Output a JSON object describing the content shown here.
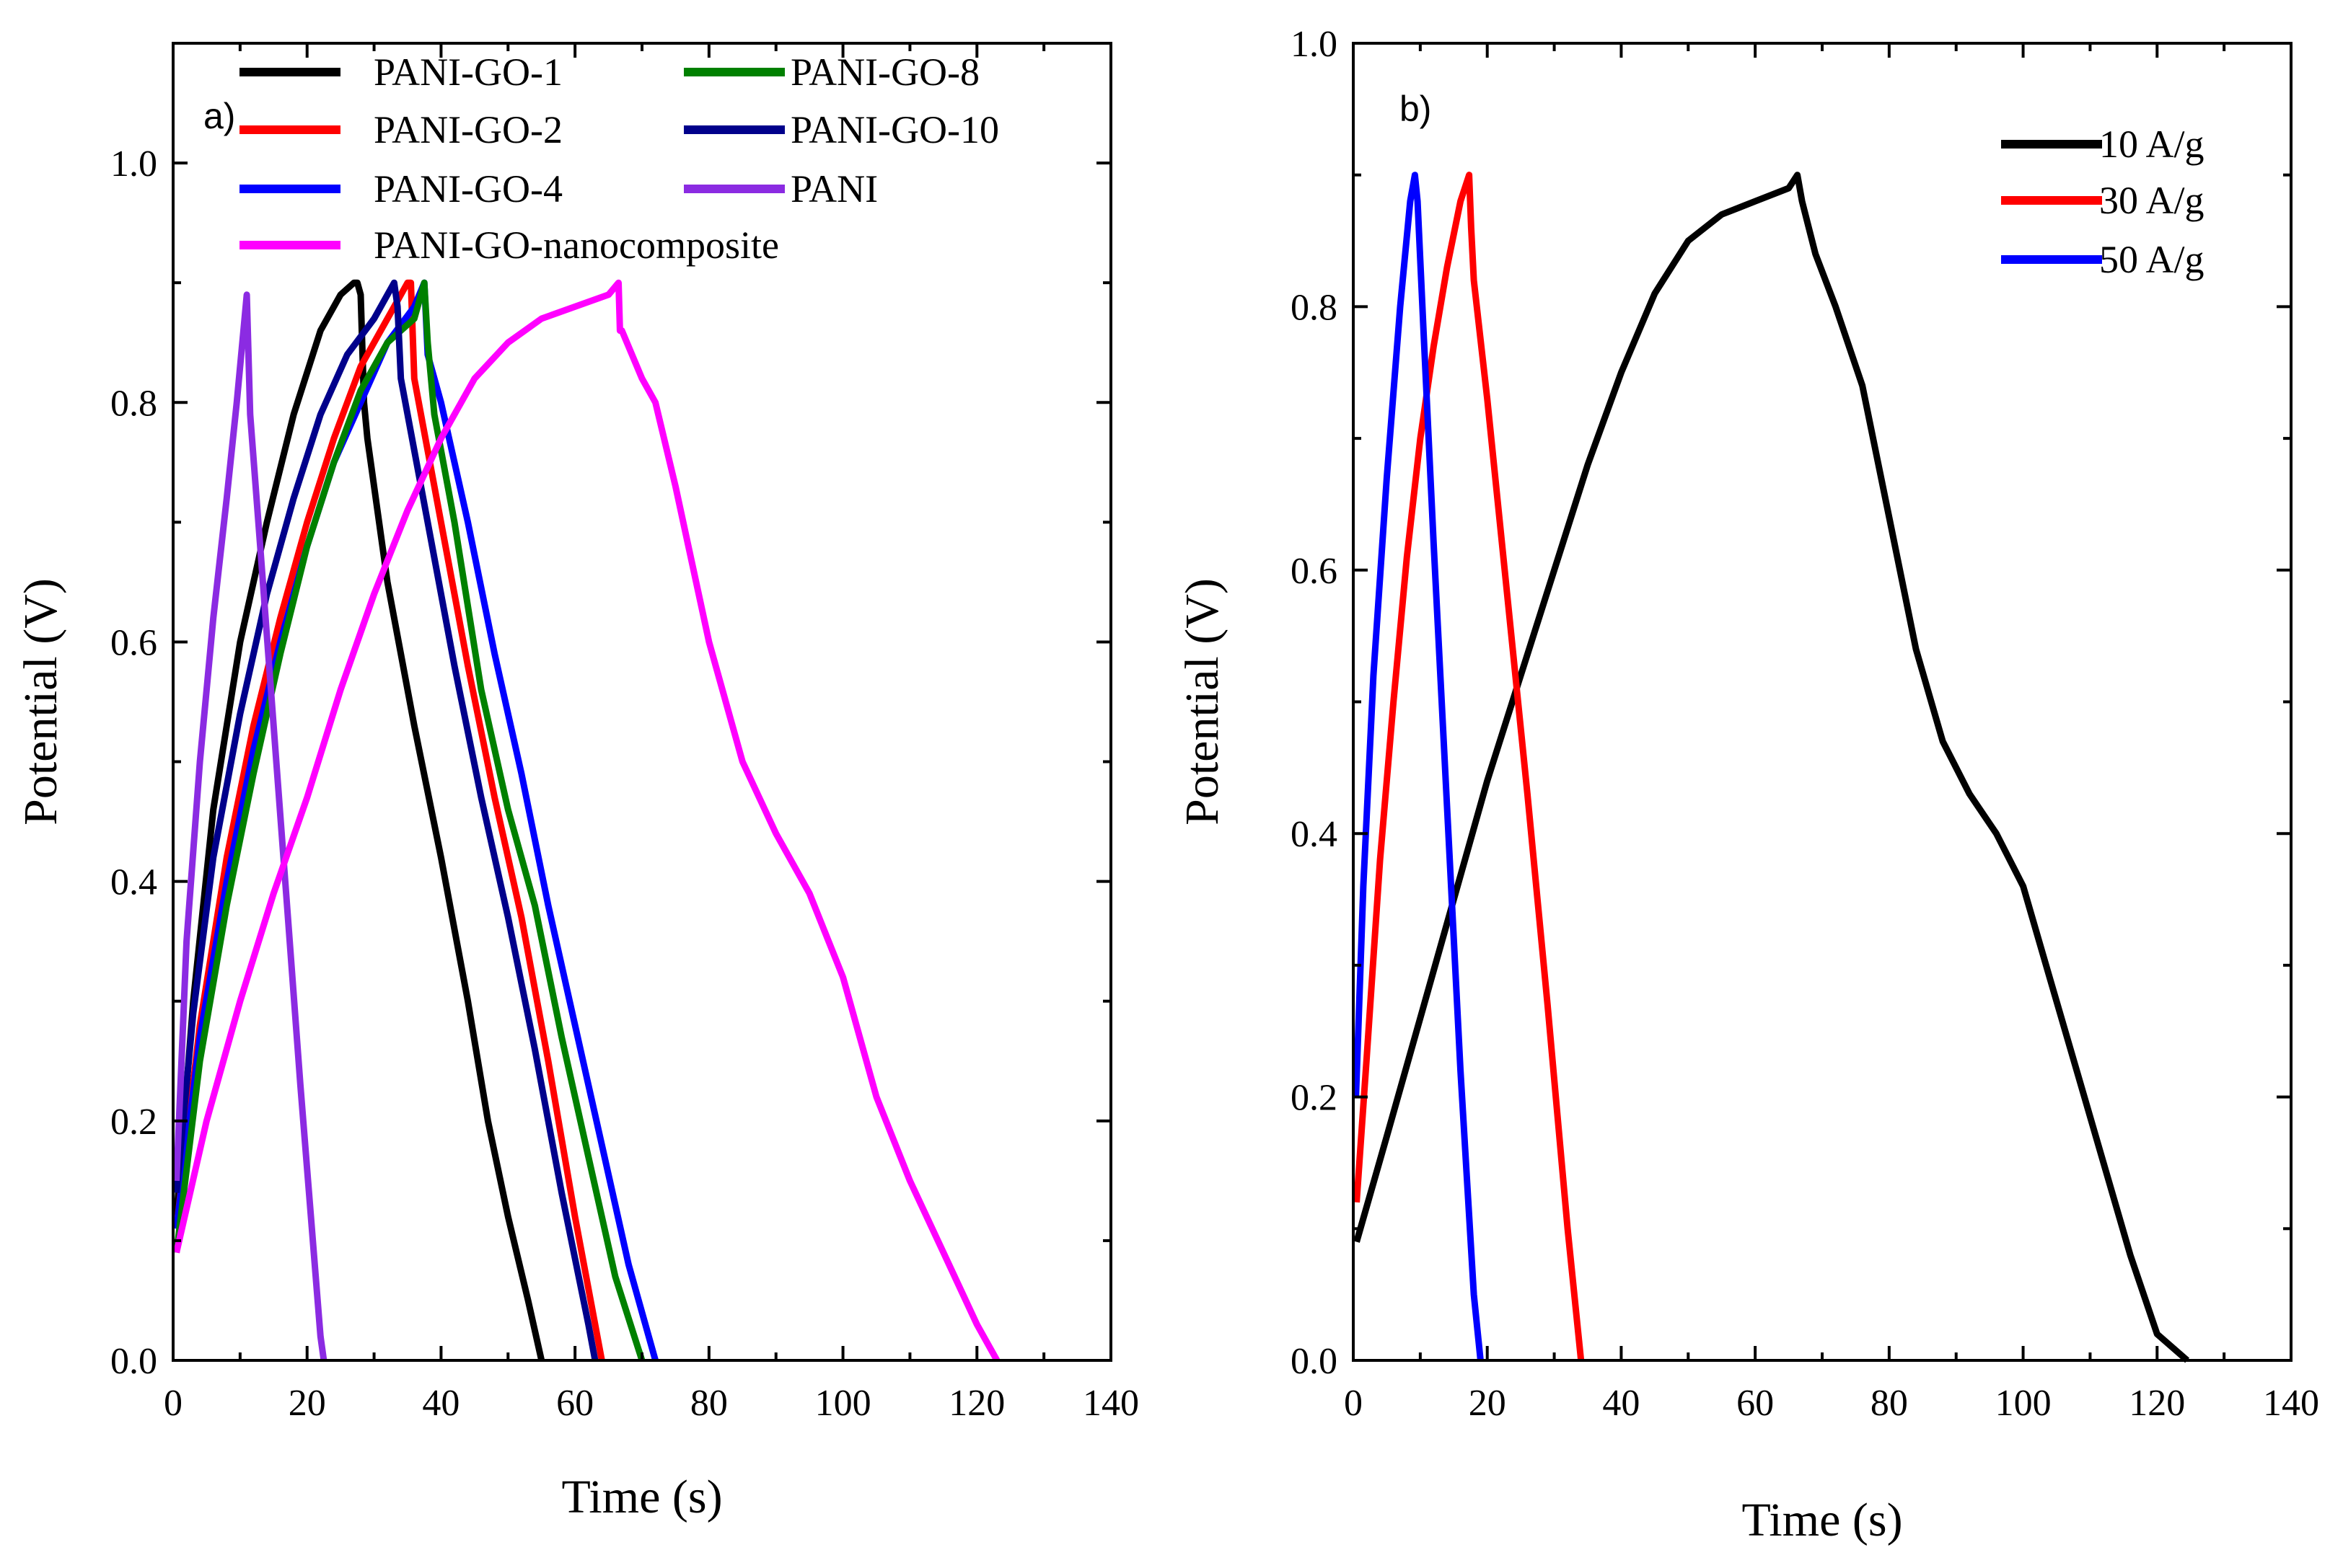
{
  "chart_data": [
    {
      "type": "line",
      "panel_label": "a)",
      "xlabel": "Time (s)",
      "ylabel": "Potential (V)",
      "xlim": [
        0,
        140
      ],
      "ylim": [
        0,
        1.1
      ],
      "xticks": [
        0,
        20,
        40,
        60,
        80,
        100,
        120,
        140
      ],
      "yticks": [
        0.0,
        0.2,
        0.4,
        0.6,
        0.8,
        1.0
      ],
      "xtick_labels": [
        "0",
        "20",
        "40",
        "60",
        "80",
        "100",
        "120",
        "140"
      ],
      "ytick_labels": [
        "0.0",
        "0.2",
        "0.4",
        "0.6",
        "0.8",
        "1.0"
      ],
      "legend_position": "top-left",
      "series": [
        {
          "name": "PANI-GO-1",
          "color": "#000000",
          "x": [
            0.5,
            3,
            6,
            10,
            14,
            18,
            22,
            25,
            27,
            27.5,
            28,
            28.5,
            29,
            32,
            36,
            40,
            44,
            47,
            50,
            53,
            55
          ],
          "y": [
            0.12,
            0.3,
            0.46,
            0.6,
            0.7,
            0.79,
            0.86,
            0.89,
            0.9,
            0.9,
            0.89,
            0.8,
            0.77,
            0.65,
            0.53,
            0.42,
            0.3,
            0.2,
            0.12,
            0.05,
            0.0
          ]
        },
        {
          "name": "PANI-GO-2",
          "color": "#ff0000",
          "x": [
            0.5,
            4,
            8,
            12,
            16,
            20,
            24,
            28,
            32,
            34,
            35,
            35.5,
            36,
            40,
            44,
            48,
            52,
            56,
            60,
            64
          ],
          "y": [
            0.11,
            0.28,
            0.42,
            0.53,
            0.62,
            0.7,
            0.77,
            0.83,
            0.87,
            0.89,
            0.9,
            0.9,
            0.82,
            0.7,
            0.58,
            0.47,
            0.37,
            0.25,
            0.12,
            0.0
          ]
        },
        {
          "name": "PANI-GO-4",
          "color": "#0000ff",
          "x": [
            0.5,
            4,
            8,
            12,
            16,
            20,
            24,
            28,
            32,
            36,
            37.5,
            38,
            40,
            44,
            48,
            52,
            56,
            60,
            64,
            68,
            72
          ],
          "y": [
            0.11,
            0.27,
            0.4,
            0.51,
            0.6,
            0.68,
            0.75,
            0.8,
            0.85,
            0.88,
            0.9,
            0.84,
            0.8,
            0.7,
            0.59,
            0.49,
            0.38,
            0.28,
            0.18,
            0.08,
            0.0
          ]
        },
        {
          "name": "PANI-GO-8",
          "color": "#008000",
          "x": [
            0.5,
            4,
            8,
            12,
            16,
            20,
            24,
            28,
            32,
            36,
            37.5,
            38,
            39,
            42,
            46,
            50,
            54,
            58,
            62,
            66,
            70
          ],
          "y": [
            0.09,
            0.25,
            0.38,
            0.49,
            0.59,
            0.68,
            0.75,
            0.81,
            0.85,
            0.87,
            0.9,
            0.85,
            0.79,
            0.7,
            0.56,
            0.46,
            0.38,
            0.27,
            0.17,
            0.07,
            0.0
          ]
        },
        {
          "name": "PANI-GO-10",
          "color": "#00008b",
          "x": [
            0.5,
            3,
            6,
            10,
            14,
            18,
            22,
            26,
            30,
            32,
            33,
            33.5,
            34,
            38,
            42,
            46,
            50,
            54,
            58,
            62,
            63
          ],
          "y": [
            0.14,
            0.29,
            0.42,
            0.54,
            0.64,
            0.72,
            0.79,
            0.84,
            0.87,
            0.89,
            0.9,
            0.88,
            0.82,
            0.7,
            0.58,
            0.47,
            0.37,
            0.26,
            0.14,
            0.03,
            0.0
          ]
        },
        {
          "name": "PANI",
          "color": "#8b2be2",
          "x": [
            0.5,
            2,
            4,
            6,
            8,
            9.5,
            10.5,
            11,
            11.5,
            13,
            15,
            17,
            19,
            21,
            22,
            22.5
          ],
          "y": [
            0.15,
            0.35,
            0.5,
            0.62,
            0.72,
            0.8,
            0.86,
            0.89,
            0.79,
            0.68,
            0.53,
            0.38,
            0.23,
            0.09,
            0.02,
            0.0
          ]
        },
        {
          "name": "PANI-GO-nanocomposite",
          "color": "#ff00ff",
          "x": [
            0.5,
            5,
            10,
            15,
            20,
            25,
            30,
            35,
            40,
            45,
            50,
            55,
            60,
            65,
            66.5,
            66.7,
            67,
            70,
            72,
            75,
            80,
            85,
            90,
            95,
            100,
            105,
            110,
            115,
            120,
            123
          ],
          "y": [
            0.09,
            0.2,
            0.3,
            0.39,
            0.47,
            0.56,
            0.64,
            0.71,
            0.77,
            0.82,
            0.85,
            0.87,
            0.88,
            0.89,
            0.9,
            0.86,
            0.86,
            0.82,
            0.8,
            0.73,
            0.6,
            0.5,
            0.44,
            0.39,
            0.32,
            0.22,
            0.15,
            0.09,
            0.03,
            0.0
          ]
        }
      ]
    },
    {
      "type": "line",
      "panel_label": "b)",
      "xlabel": "Time (s)",
      "ylabel": "Potential (V)",
      "xlim": [
        0,
        140
      ],
      "ylim": [
        0,
        1.0
      ],
      "xticks": [
        0,
        20,
        40,
        60,
        80,
        100,
        120,
        140
      ],
      "yticks": [
        0.0,
        0.2,
        0.4,
        0.6,
        0.8,
        1.0
      ],
      "xtick_labels": [
        "0",
        "20",
        "40",
        "60",
        "80",
        "100",
        "120",
        "140"
      ],
      "ytick_labels": [
        "0.0",
        "0.2",
        "0.4",
        "0.6",
        "0.8",
        "1.0"
      ],
      "legend_position": "top-right",
      "series": [
        {
          "name": "10 A/g",
          "color": "#000000",
          "x": [
            0.5,
            5,
            10,
            15,
            20,
            25,
            30,
            35,
            40,
            45,
            50,
            55,
            60,
            65,
            66.3,
            67,
            68,
            69,
            72,
            76,
            80,
            84,
            88,
            92,
            96,
            100,
            104,
            108,
            112,
            116,
            120,
            124.5
          ],
          "y": [
            0.09,
            0.17,
            0.26,
            0.35,
            0.44,
            0.52,
            0.6,
            0.68,
            0.75,
            0.81,
            0.85,
            0.87,
            0.88,
            0.89,
            0.9,
            0.88,
            0.86,
            0.84,
            0.8,
            0.74,
            0.64,
            0.54,
            0.47,
            0.43,
            0.4,
            0.36,
            0.29,
            0.22,
            0.15,
            0.08,
            0.02,
            0.0
          ]
        },
        {
          "name": "30 A/g",
          "color": "#ff0000",
          "x": [
            0.5,
            2,
            4,
            6,
            8,
            10,
            12,
            14,
            16,
            17.3,
            17.6,
            18,
            20,
            23,
            26,
            29,
            32,
            34
          ],
          "y": [
            0.12,
            0.23,
            0.38,
            0.5,
            0.61,
            0.7,
            0.77,
            0.83,
            0.88,
            0.9,
            0.86,
            0.82,
            0.73,
            0.58,
            0.43,
            0.27,
            0.1,
            0.0
          ]
        },
        {
          "name": "50 A/g",
          "color": "#0000ff",
          "x": [
            0.4,
            1.5,
            3,
            5,
            7,
            8.5,
            9.2,
            9.6,
            10.5,
            12,
            14,
            16,
            18,
            19
          ],
          "y": [
            0.2,
            0.36,
            0.52,
            0.67,
            0.8,
            0.88,
            0.9,
            0.88,
            0.78,
            0.62,
            0.42,
            0.22,
            0.05,
            0.0
          ]
        }
      ]
    }
  ]
}
